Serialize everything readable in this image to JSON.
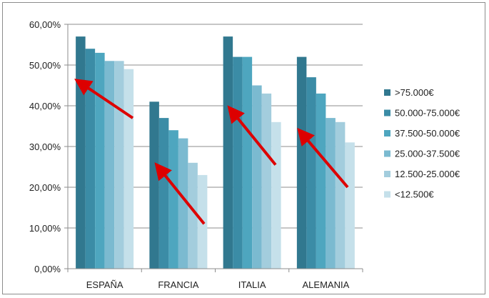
{
  "chart_data": {
    "type": "bar",
    "categories": [
      "ESPAÑA",
      "FRANCIA",
      "ITALIA",
      "ALEMANIA"
    ],
    "series": [
      {
        "name": ">75.000€",
        "color": "#31788f",
        "values": [
          0.57,
          0.41,
          0.57,
          0.52
        ]
      },
      {
        "name": "50.000-75.000€",
        "color": "#3b8ca6",
        "values": [
          0.54,
          0.37,
          0.52,
          0.47
        ]
      },
      {
        "name": "37.500-50.000€",
        "color": "#4ea6bf",
        "values": [
          0.53,
          0.34,
          0.52,
          0.43
        ]
      },
      {
        "name": "25.000-37.500€",
        "color": "#7bbad0",
        "values": [
          0.51,
          0.32,
          0.45,
          0.37
        ]
      },
      {
        "name": "12.500-25.000€",
        "color": "#a3cddd",
        "values": [
          0.51,
          0.26,
          0.43,
          0.36
        ]
      },
      {
        "name": "<12.500€",
        "color": "#c5e0ea",
        "values": [
          0.49,
          0.23,
          0.36,
          0.31
        ]
      }
    ],
    "yticks": [
      "0,00%",
      "10,00%",
      "20,00%",
      "30,00%",
      "40,00%",
      "50,00%",
      "60,00%"
    ],
    "ylim": [
      0,
      0.6
    ],
    "grid": true,
    "legend": "right",
    "annotations": [
      {
        "type": "arrow",
        "color": "#dd0000",
        "category": "ESPAÑA",
        "from": 0.37,
        "to": 0.46
      },
      {
        "type": "arrow",
        "color": "#dd0000",
        "category": "FRANCIA",
        "from": 0.11,
        "to": 0.25
      },
      {
        "type": "arrow",
        "color": "#dd0000",
        "category": "ITALIA",
        "from": 0.255,
        "to": 0.39
      },
      {
        "type": "arrow",
        "color": "#dd0000",
        "category": "ALEMANIA",
        "from": 0.2,
        "to": 0.335
      }
    ]
  }
}
